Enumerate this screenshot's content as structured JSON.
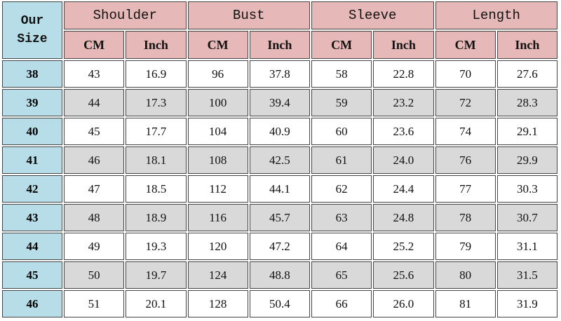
{
  "table": {
    "corner": "Our Size",
    "groups": [
      "Shoulder",
      "Bust",
      "Sleeve",
      "Length"
    ],
    "units": [
      "CM",
      "Inch",
      "CM",
      "Inch",
      "CM",
      "Inch",
      "CM",
      "Inch"
    ],
    "rows": [
      [
        "38",
        "43",
        "16.9",
        "96",
        "37.8",
        "58",
        "22.8",
        "70",
        "27.6"
      ],
      [
        "39",
        "44",
        "17.3",
        "100",
        "39.4",
        "59",
        "23.2",
        "72",
        "28.3"
      ],
      [
        "40",
        "45",
        "17.7",
        "104",
        "40.9",
        "60",
        "23.6",
        "74",
        "29.1"
      ],
      [
        "41",
        "46",
        "18.1",
        "108",
        "42.5",
        "61",
        "24.0",
        "76",
        "29.9"
      ],
      [
        "42",
        "47",
        "18.5",
        "112",
        "44.1",
        "62",
        "24.4",
        "77",
        "30.3"
      ],
      [
        "43",
        "48",
        "18.9",
        "116",
        "45.7",
        "63",
        "24.8",
        "78",
        "30.7"
      ],
      [
        "44",
        "49",
        "19.3",
        "120",
        "47.2",
        "64",
        "25.2",
        "79",
        "31.1"
      ],
      [
        "45",
        "50",
        "19.7",
        "124",
        "48.8",
        "65",
        "25.6",
        "80",
        "31.5"
      ],
      [
        "46",
        "51",
        "20.1",
        "128",
        "50.4",
        "66",
        "26.0",
        "81",
        "31.9"
      ]
    ]
  }
}
